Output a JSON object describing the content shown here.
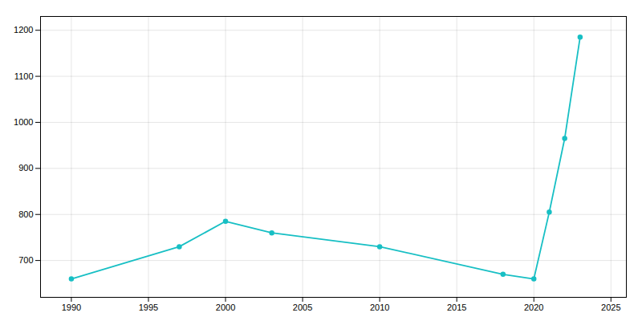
{
  "chart_data": {
    "type": "line",
    "x": [
      1990,
      1997,
      2000,
      2003,
      2010,
      2018,
      2020,
      2021,
      2022,
      2023
    ],
    "values": [
      660,
      730,
      785,
      760,
      730,
      670,
      660,
      805,
      965,
      1185
    ],
    "color": "#17BFC4",
    "marker": "circle",
    "xlim": [
      1988,
      2026
    ],
    "ylim": [
      620,
      1230
    ],
    "xticks": [
      1990,
      1995,
      2000,
      2005,
      2010,
      2015,
      2020,
      2025
    ],
    "yticks": [
      700,
      800,
      900,
      1000,
      1100,
      1200
    ],
    "grid": true
  }
}
